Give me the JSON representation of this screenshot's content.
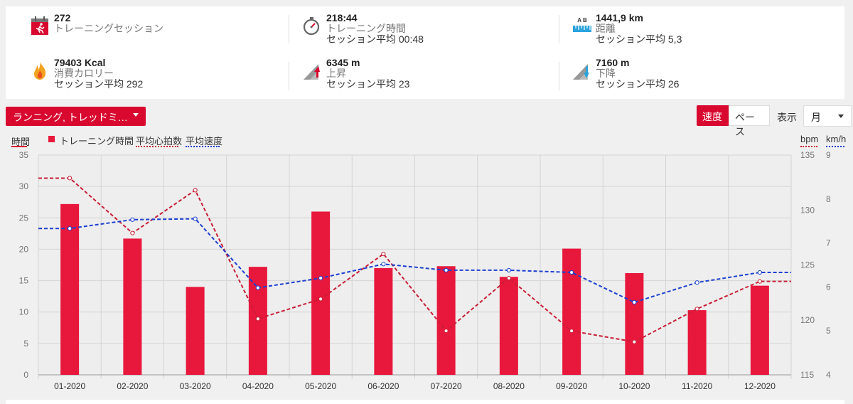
{
  "summary": {
    "sessions": {
      "value": "272",
      "label": "トレーニングセッション"
    },
    "time": {
      "value": "218:44",
      "label": "トレーニング時間",
      "sub": "セッション平均 00:48"
    },
    "distance": {
      "value": "1441,9 km",
      "label": "距離",
      "sub": "セッション平均 5,3",
      "icon_letters": "A   B"
    },
    "calories": {
      "value": "79403 Kcal",
      "label": "消費カロリー",
      "sub": "セッション平均 292"
    },
    "ascent": {
      "value": "6345 m",
      "label": "上昇",
      "sub": "セッション平均 23"
    },
    "descent": {
      "value": "7160 m",
      "label": "下降",
      "sub": "セッション平均 26"
    }
  },
  "icons": {
    "sessions": "calendar-runner-icon",
    "time": "stopwatch-icon",
    "distance": "ruler-icon",
    "calories": "flame-icon",
    "ascent": "ascent-icon",
    "descent": "descent-icon"
  },
  "controls": {
    "sport_filter": "ランニング, トレッドミ…",
    "speed_tab": "速度",
    "pace_tab": "ペース",
    "show_label": "表示",
    "period_select": "月"
  },
  "colors": {
    "accent": "#d8082f",
    "bar": "#e8173c",
    "hr_line": "#c81e36",
    "speed_line": "#1c3fd0"
  },
  "chart_data": {
    "type": "bar",
    "left_axis_label": "時間",
    "right_axis_labels": [
      "bpm",
      "km/h"
    ],
    "legend": [
      "トレーニング時間",
      "平均心拍数",
      "平均速度"
    ],
    "categories": [
      "01-2020",
      "02-2020",
      "03-2020",
      "04-2020",
      "05-2020",
      "06-2020",
      "07-2020",
      "08-2020",
      "09-2020",
      "10-2020",
      "11-2020",
      "12-2020"
    ],
    "y_left": {
      "min": 0,
      "max": 35,
      "ticks": [
        0,
        5,
        10,
        15,
        20,
        25,
        30,
        35
      ]
    },
    "y_bpm": {
      "min": 115,
      "max": 135,
      "ticks": [
        115,
        120,
        125,
        130,
        135
      ]
    },
    "y_kmh": {
      "min": 4,
      "max": 9,
      "ticks": [
        4,
        5,
        6,
        7,
        8,
        9
      ]
    },
    "grid": true,
    "series": [
      {
        "name": "トレーニング時間",
        "type": "bar",
        "axis": "left",
        "values": [
          27.2,
          21.7,
          14.0,
          17.2,
          26.0,
          17.0,
          17.3,
          15.6,
          20.1,
          16.2,
          10.3,
          14.2
        ]
      },
      {
        "name": "平均心拍数",
        "type": "line",
        "axis": "bpm",
        "values": [
          132.9,
          127.9,
          131.8,
          120.1,
          121.9,
          126.0,
          119.0,
          123.8,
          119.0,
          118.0,
          121.0,
          123.5
        ]
      },
      {
        "name": "平均速度",
        "type": "line",
        "axis": "kmh",
        "values": [
          7.33,
          7.53,
          7.55,
          5.98,
          6.2,
          6.52,
          6.38,
          6.38,
          6.33,
          5.65,
          6.1,
          6.33
        ]
      }
    ]
  }
}
